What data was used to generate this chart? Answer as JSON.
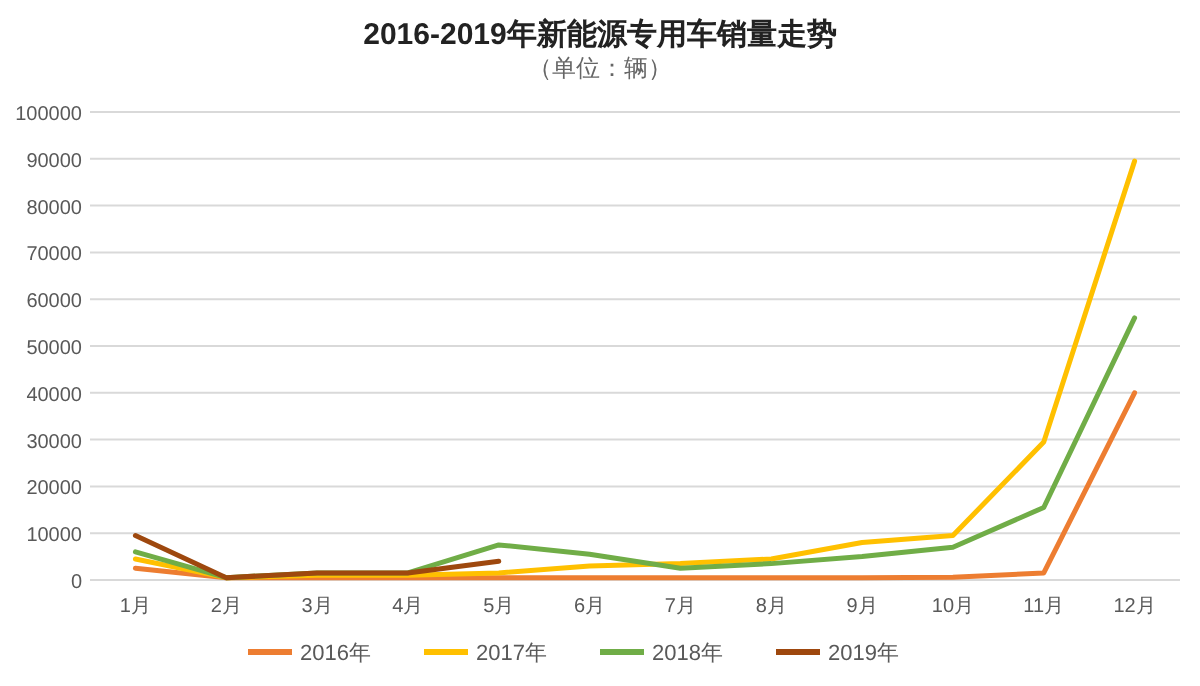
{
  "chart_data": {
    "type": "line",
    "title": "2016-2019年新能源专用车销量走势",
    "subtitle": "（单位：辆）",
    "categories": [
      "1月",
      "2月",
      "3月",
      "4月",
      "5月",
      "6月",
      "7月",
      "8月",
      "9月",
      "10月",
      "11月",
      "12月"
    ],
    "series": [
      {
        "name": "2016年",
        "color": "#ed7d31",
        "values": [
          2500,
          500,
          500,
          500,
          500,
          500,
          500,
          500,
          500,
          600,
          1500,
          40000
        ]
      },
      {
        "name": "2017年",
        "color": "#ffc000",
        "values": [
          4500,
          500,
          1000,
          1000,
          1500,
          3000,
          3500,
          4500,
          8000,
          9500,
          29500,
          89500
        ]
      },
      {
        "name": "2018年",
        "color": "#70ad47",
        "values": [
          6000,
          500,
          1500,
          1500,
          7500,
          5500,
          2500,
          3500,
          5000,
          7000,
          15500,
          56000
        ]
      },
      {
        "name": "2019年",
        "color": "#9e480e",
        "values": [
          9500,
          500,
          1500,
          1500,
          4000,
          null,
          null,
          null,
          null,
          null,
          null,
          null
        ]
      }
    ],
    "ylim": [
      0,
      100000
    ],
    "yticks": [
      0,
      10000,
      20000,
      30000,
      40000,
      50000,
      60000,
      70000,
      80000,
      90000,
      100000
    ],
    "grid": "y",
    "legend": "bottom",
    "marker": "none",
    "line_style": "solid"
  }
}
